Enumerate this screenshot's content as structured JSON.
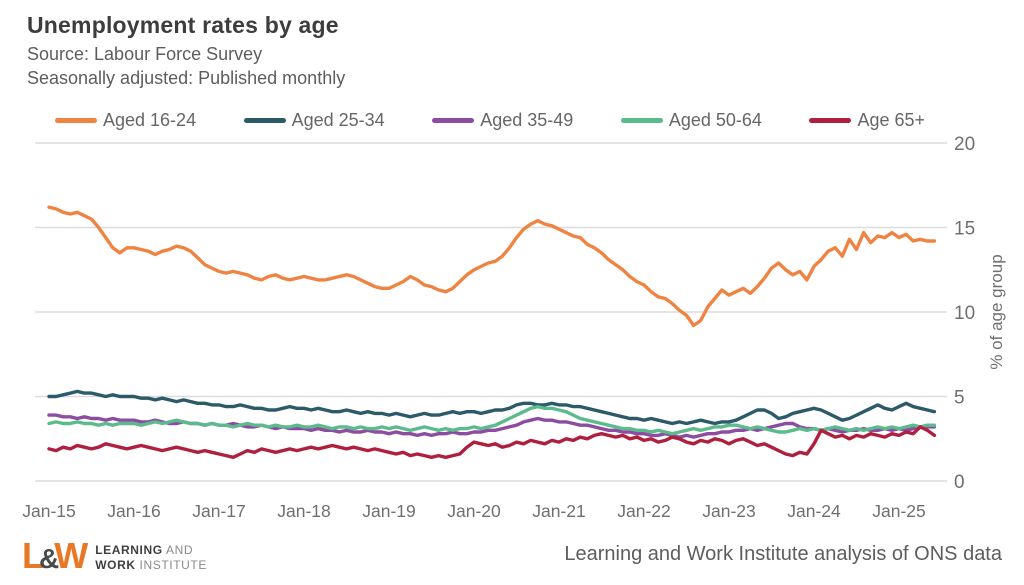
{
  "header": {
    "title": "Unemployment rates by age",
    "subtitle1": "Source: Labour Force Survey",
    "subtitle2": "Seasonally adjusted: Published monthly"
  },
  "footer": {
    "logo_mark_l": "L",
    "logo_mark_amp": "&",
    "logo_mark_w": "W",
    "logo_line1_bold": "LEARNING",
    "logo_line1_light": " AND",
    "logo_line2_bold": "WORK",
    "logo_line2_light": " INSTITUTE",
    "caption": "Learning and Work Institute analysis of ONS data"
  },
  "chart_data": {
    "type": "line",
    "title": "Unemployment rates by age",
    "x_unit": "month",
    "x_start": "Jan-15",
    "x_end": "Jun-25",
    "xtick_labels": [
      "Jan-15",
      "Jan-16",
      "Jan-17",
      "Jan-18",
      "Jan-19",
      "Jan-20",
      "Jan-21",
      "Jan-22",
      "Jan-23",
      "Jan-24",
      "Jan-25"
    ],
    "ylabel_right": "% of age group",
    "ylim": [
      0,
      20
    ],
    "yticks": [
      0,
      5,
      10,
      15,
      20
    ],
    "grid": "horizontal",
    "legend_position": "top",
    "grid_color": "#dcdcdc",
    "axis_text_color": "#6f6f6f",
    "series": [
      {
        "name": "Aged 16-24",
        "color": "#EF8442",
        "values": [
          16.2,
          16.1,
          15.9,
          15.8,
          15.9,
          15.7,
          15.5,
          15.0,
          14.4,
          13.8,
          13.5,
          13.8,
          13.8,
          13.7,
          13.6,
          13.4,
          13.6,
          13.7,
          13.9,
          13.8,
          13.6,
          13.2,
          12.8,
          12.6,
          12.4,
          12.3,
          12.4,
          12.3,
          12.2,
          12.0,
          11.9,
          12.1,
          12.2,
          12.0,
          11.9,
          12.0,
          12.1,
          12.0,
          11.9,
          11.9,
          12.0,
          12.1,
          12.2,
          12.1,
          11.9,
          11.7,
          11.5,
          11.4,
          11.4,
          11.6,
          11.8,
          12.1,
          11.9,
          11.6,
          11.5,
          11.3,
          11.2,
          11.4,
          11.8,
          12.2,
          12.5,
          12.7,
          12.9,
          13.0,
          13.3,
          13.8,
          14.4,
          14.9,
          15.2,
          15.4,
          15.2,
          15.1,
          14.9,
          14.7,
          14.5,
          14.4,
          14.0,
          13.8,
          13.5,
          13.1,
          12.8,
          12.5,
          12.1,
          11.8,
          11.6,
          11.2,
          10.9,
          10.8,
          10.5,
          10.1,
          9.8,
          9.2,
          9.5,
          10.3,
          10.8,
          11.3,
          11.0,
          11.2,
          11.4,
          11.1,
          11.5,
          12.0,
          12.6,
          12.9,
          12.5,
          12.2,
          12.4,
          11.9,
          12.7,
          13.1,
          13.6,
          13.8,
          13.3,
          14.3,
          13.7,
          14.7,
          14.1,
          14.5,
          14.4,
          14.7,
          14.4,
          14.6,
          14.2,
          14.3,
          14.2,
          14.2
        ]
      },
      {
        "name": "Aged 25-34",
        "color": "#2C5A68",
        "values": [
          5.0,
          5.0,
          5.1,
          5.2,
          5.3,
          5.2,
          5.2,
          5.1,
          5.0,
          5.1,
          5.0,
          5.0,
          5.0,
          4.9,
          4.9,
          4.8,
          4.9,
          4.8,
          4.7,
          4.8,
          4.7,
          4.6,
          4.6,
          4.5,
          4.5,
          4.4,
          4.4,
          4.5,
          4.4,
          4.3,
          4.3,
          4.2,
          4.2,
          4.3,
          4.4,
          4.3,
          4.3,
          4.2,
          4.3,
          4.2,
          4.1,
          4.1,
          4.2,
          4.1,
          4.0,
          4.1,
          4.0,
          4.0,
          3.9,
          4.0,
          3.9,
          3.8,
          3.9,
          4.0,
          3.9,
          3.9,
          4.0,
          4.1,
          4.0,
          4.1,
          4.1,
          4.0,
          4.1,
          4.2,
          4.2,
          4.3,
          4.5,
          4.6,
          4.6,
          4.5,
          4.5,
          4.6,
          4.5,
          4.5,
          4.4,
          4.4,
          4.3,
          4.2,
          4.1,
          4.0,
          3.9,
          3.8,
          3.7,
          3.7,
          3.6,
          3.7,
          3.6,
          3.5,
          3.4,
          3.5,
          3.4,
          3.5,
          3.6,
          3.5,
          3.4,
          3.5,
          3.5,
          3.6,
          3.8,
          4.0,
          4.2,
          4.2,
          4.0,
          3.7,
          3.8,
          4.0,
          4.1,
          4.2,
          4.3,
          4.2,
          4.0,
          3.8,
          3.6,
          3.7,
          3.9,
          4.1,
          4.3,
          4.5,
          4.3,
          4.2,
          4.4,
          4.6,
          4.4,
          4.3,
          4.2,
          4.1
        ]
      },
      {
        "name": "Aged 35-49",
        "color": "#8C4CA0",
        "values": [
          3.9,
          3.9,
          3.8,
          3.8,
          3.7,
          3.8,
          3.7,
          3.7,
          3.6,
          3.7,
          3.6,
          3.6,
          3.6,
          3.5,
          3.5,
          3.6,
          3.5,
          3.4,
          3.4,
          3.5,
          3.4,
          3.4,
          3.3,
          3.4,
          3.3,
          3.3,
          3.4,
          3.3,
          3.2,
          3.2,
          3.3,
          3.2,
          3.1,
          3.2,
          3.1,
          3.1,
          3.1,
          3.0,
          3.1,
          3.0,
          3.0,
          2.9,
          3.0,
          2.9,
          2.9,
          3.0,
          2.9,
          2.9,
          2.8,
          2.9,
          2.8,
          2.8,
          2.7,
          2.8,
          2.7,
          2.8,
          2.8,
          2.9,
          2.8,
          2.8,
          2.9,
          2.9,
          3.0,
          3.0,
          3.1,
          3.2,
          3.3,
          3.5,
          3.6,
          3.7,
          3.6,
          3.6,
          3.5,
          3.5,
          3.4,
          3.3,
          3.3,
          3.2,
          3.1,
          3.0,
          3.0,
          2.9,
          2.9,
          2.8,
          2.8,
          2.7,
          2.7,
          2.8,
          2.7,
          2.6,
          2.7,
          2.6,
          2.7,
          2.8,
          2.8,
          2.9,
          2.9,
          3.0,
          3.0,
          3.1,
          3.0,
          3.1,
          3.2,
          3.3,
          3.4,
          3.4,
          3.2,
          3.1,
          3.1,
          3.0,
          3.1,
          3.0,
          2.9,
          3.0,
          3.0,
          3.1,
          3.0,
          3.0,
          3.1,
          3.0,
          3.1,
          3.0,
          3.1,
          3.2,
          3.2,
          3.2
        ]
      },
      {
        "name": "Aged 50-64",
        "color": "#5CBB8C",
        "values": [
          3.4,
          3.5,
          3.4,
          3.4,
          3.5,
          3.4,
          3.4,
          3.3,
          3.4,
          3.3,
          3.4,
          3.4,
          3.4,
          3.3,
          3.4,
          3.5,
          3.4,
          3.5,
          3.6,
          3.5,
          3.4,
          3.4,
          3.3,
          3.4,
          3.3,
          3.3,
          3.2,
          3.3,
          3.4,
          3.3,
          3.3,
          3.2,
          3.3,
          3.2,
          3.2,
          3.3,
          3.2,
          3.2,
          3.3,
          3.2,
          3.1,
          3.2,
          3.2,
          3.1,
          3.2,
          3.1,
          3.1,
          3.2,
          3.1,
          3.2,
          3.1,
          3.0,
          3.1,
          3.2,
          3.1,
          3.0,
          3.1,
          3.0,
          3.1,
          3.1,
          3.2,
          3.1,
          3.2,
          3.3,
          3.5,
          3.7,
          3.9,
          4.1,
          4.3,
          4.4,
          4.3,
          4.3,
          4.2,
          4.1,
          3.9,
          3.7,
          3.6,
          3.5,
          3.4,
          3.3,
          3.2,
          3.1,
          3.1,
          3.0,
          3.0,
          2.9,
          3.0,
          2.9,
          2.8,
          2.9,
          3.0,
          3.1,
          3.0,
          3.1,
          3.2,
          3.2,
          3.3,
          3.3,
          3.2,
          3.1,
          3.2,
          3.1,
          3.0,
          2.9,
          2.9,
          3.0,
          3.1,
          3.0,
          3.1,
          3.0,
          3.1,
          3.2,
          3.1,
          3.0,
          3.1,
          3.0,
          3.1,
          3.2,
          3.1,
          3.2,
          3.1,
          3.2,
          3.3,
          3.2,
          3.3,
          3.3
        ]
      },
      {
        "name": "Age 65+",
        "color": "#AF1F3E",
        "values": [
          1.9,
          1.8,
          2.0,
          1.9,
          2.1,
          2.0,
          1.9,
          2.0,
          2.2,
          2.1,
          2.0,
          1.9,
          2.0,
          2.1,
          2.0,
          1.9,
          1.8,
          1.9,
          2.0,
          1.9,
          1.8,
          1.7,
          1.8,
          1.7,
          1.6,
          1.5,
          1.4,
          1.6,
          1.8,
          1.7,
          1.9,
          1.8,
          1.7,
          1.8,
          1.9,
          1.8,
          1.9,
          2.0,
          1.9,
          2.0,
          2.1,
          2.0,
          1.9,
          2.0,
          1.9,
          1.8,
          1.9,
          1.8,
          1.7,
          1.6,
          1.7,
          1.5,
          1.6,
          1.5,
          1.4,
          1.5,
          1.4,
          1.5,
          1.6,
          2.0,
          2.3,
          2.2,
          2.1,
          2.2,
          2.0,
          2.1,
          2.3,
          2.2,
          2.4,
          2.3,
          2.2,
          2.4,
          2.3,
          2.5,
          2.4,
          2.6,
          2.5,
          2.7,
          2.8,
          2.7,
          2.6,
          2.7,
          2.5,
          2.6,
          2.4,
          2.5,
          2.3,
          2.4,
          2.6,
          2.5,
          2.3,
          2.2,
          2.4,
          2.3,
          2.5,
          2.4,
          2.2,
          2.4,
          2.5,
          2.3,
          2.1,
          2.2,
          2.0,
          1.8,
          1.6,
          1.5,
          1.7,
          1.6,
          2.2,
          3.0,
          2.8,
          2.6,
          2.7,
          2.5,
          2.7,
          2.6,
          2.8,
          2.7,
          2.6,
          2.8,
          2.7,
          2.9,
          2.8,
          3.2,
          3.0,
          2.7
        ]
      }
    ]
  }
}
